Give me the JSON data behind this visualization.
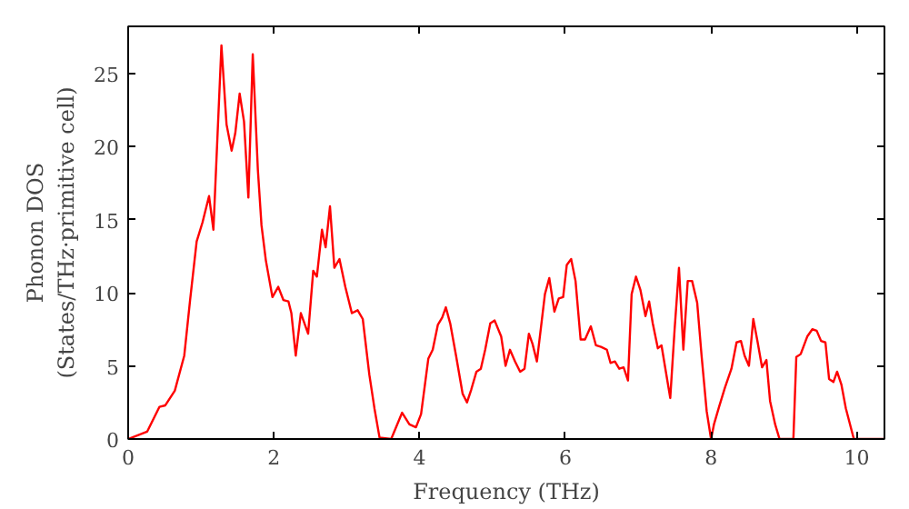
{
  "chart_data": {
    "type": "line",
    "xlabel": "Frequency (THz)",
    "ylabel": "Phonon DOS\n(States/THz·primitive cell)",
    "xlim": [
      0,
      10.38
    ],
    "ylim": [
      0,
      28.2
    ],
    "xticks": [
      0,
      2,
      4,
      6,
      8,
      10
    ],
    "yticks": [
      0,
      5,
      10,
      15,
      20,
      25
    ],
    "grid": false,
    "marker": "none",
    "line_style": "solid",
    "series": [
      {
        "color": "#ff0000",
        "x": [
          0,
          0.26,
          0.43,
          0.51,
          0.64,
          0.77,
          0.85,
          0.94,
          1.02,
          1.11,
          1.17,
          1.28,
          1.35,
          1.42,
          1.47,
          1.53,
          1.59,
          1.65,
          1.71,
          1.78,
          1.83,
          1.89,
          1.98,
          2.06,
          2.13,
          2.2,
          2.24,
          2.3,
          2.37,
          2.47,
          2.54,
          2.59,
          2.66,
          2.71,
          2.77,
          2.83,
          2.9,
          2.98,
          3.07,
          3.15,
          3.22,
          3.31,
          3.38,
          3.45,
          3.61,
          3.76,
          3.86,
          3.95,
          4.02,
          4.12,
          4.18,
          4.25,
          4.31,
          4.36,
          4.42,
          4.5,
          4.59,
          4.65,
          4.71,
          4.78,
          4.84,
          4.9,
          4.97,
          5.03,
          5.12,
          5.18,
          5.24,
          5.31,
          5.38,
          5.44,
          5.5,
          5.55,
          5.61,
          5.72,
          5.78,
          5.85,
          5.91,
          5.97,
          6.02,
          6.08,
          6.14,
          6.21,
          6.27,
          6.35,
          6.42,
          6.49,
          6.57,
          6.62,
          6.68,
          6.74,
          6.8,
          6.86,
          6.91,
          6.97,
          7.03,
          7.1,
          7.15,
          7.2,
          7.27,
          7.32,
          7.38,
          7.44,
          7.5,
          7.56,
          7.62,
          7.68,
          7.74,
          7.81,
          7.87,
          7.94,
          8.0,
          8.04,
          8.11,
          8.19,
          8.28,
          8.35,
          8.41,
          8.46,
          8.52,
          8.58,
          8.64,
          8.7,
          8.76,
          8.81,
          8.88,
          8.94,
          9.13,
          9.17,
          9.23,
          9.32,
          9.39,
          9.45,
          9.51,
          9.57,
          9.62,
          9.68,
          9.73,
          9.79,
          9.85,
          9.96,
          10.38
        ],
        "values": [
          0,
          0.5,
          2.2,
          2.3,
          3.3,
          5.7,
          9.5,
          13.5,
          14.8,
          16.6,
          14.3,
          26.9,
          21.5,
          19.7,
          20.9,
          23.6,
          21.7,
          16.5,
          26.3,
          18.4,
          14.6,
          12.2,
          9.7,
          10.4,
          9.5,
          9.4,
          8.6,
          5.7,
          8.6,
          7.2,
          11.5,
          11.1,
          14.3,
          13.1,
          15.9,
          11.7,
          12.3,
          10.4,
          8.6,
          8.8,
          8.2,
          4.4,
          2.1,
          0.1,
          0,
          1.8,
          1.0,
          0.8,
          1.7,
          5.5,
          6.1,
          7.8,
          8.3,
          9.0,
          7.9,
          5.7,
          3.1,
          2.5,
          3.4,
          4.6,
          4.8,
          6.1,
          7.9,
          8.1,
          7.0,
          5.0,
          6.1,
          5.3,
          4.6,
          4.8,
          7.2,
          6.5,
          5.3,
          9.9,
          11.0,
          8.7,
          9.6,
          9.7,
          11.9,
          12.3,
          10.8,
          6.8,
          6.8,
          7.7,
          6.4,
          6.3,
          6.1,
          5.2,
          5.3,
          4.8,
          4.9,
          4.0,
          9.9,
          11.1,
          10.2,
          8.4,
          9.4,
          7.9,
          6.2,
          6.4,
          4.6,
          2.8,
          7.5,
          11.7,
          6.1,
          10.8,
          10.8,
          9.3,
          5.7,
          1.9,
          0,
          1.0,
          2.2,
          3.5,
          4.8,
          6.6,
          6.7,
          5.7,
          5.0,
          8.2,
          6.6,
          4.9,
          5.4,
          2.6,
          1.0,
          0,
          0,
          5.6,
          5.8,
          7.0,
          7.5,
          7.4,
          6.7,
          6.6,
          4.1,
          3.9,
          4.6,
          3.7,
          2.1,
          0,
          0
        ]
      }
    ]
  }
}
